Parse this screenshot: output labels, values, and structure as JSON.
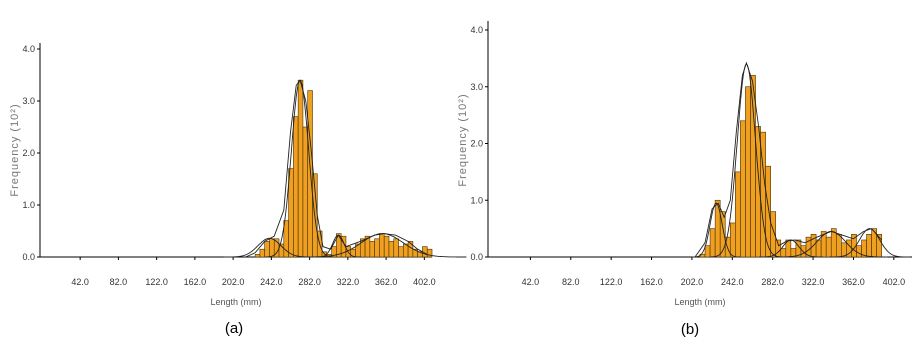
{
  "chart_data": [
    {
      "type": "bar",
      "caption": "(a)",
      "xlabel": "Length (mm)",
      "ylabel": "Frequency (10²)",
      "xlim": [
        0,
        520
      ],
      "ylim": [
        0,
        4.2
      ],
      "bin_width": 5,
      "x_ticks": [
        "42.0",
        "82.0",
        "122.0",
        "162.0",
        "202.0",
        "242.0",
        "282.0",
        "322.0",
        "362.0",
        "402.0"
      ],
      "x_tick_values": [
        42,
        82,
        122,
        162,
        202,
        242,
        282,
        322,
        362,
        402
      ],
      "y_ticks": [
        "0.0",
        "1.0",
        "2.0",
        "3.0",
        "4.0"
      ],
      "y_tick_values": [
        0,
        1,
        2,
        3,
        4
      ],
      "bars": [
        {
          "x": 225,
          "y": 0.05
        },
        {
          "x": 230,
          "y": 0.15
        },
        {
          "x": 235,
          "y": 0.3
        },
        {
          "x": 240,
          "y": 0.35
        },
        {
          "x": 245,
          "y": 0.35
        },
        {
          "x": 250,
          "y": 0.25
        },
        {
          "x": 255,
          "y": 0.7
        },
        {
          "x": 260,
          "y": 1.7
        },
        {
          "x": 265,
          "y": 2.7
        },
        {
          "x": 270,
          "y": 3.4
        },
        {
          "x": 275,
          "y": 2.5
        },
        {
          "x": 280,
          "y": 3.2
        },
        {
          "x": 285,
          "y": 1.6
        },
        {
          "x": 290,
          "y": 0.5
        },
        {
          "x": 295,
          "y": 0.1
        },
        {
          "x": 300,
          "y": 0.05
        },
        {
          "x": 305,
          "y": 0.2
        },
        {
          "x": 310,
          "y": 0.45
        },
        {
          "x": 315,
          "y": 0.4
        },
        {
          "x": 320,
          "y": 0.2
        },
        {
          "x": 325,
          "y": 0.15
        },
        {
          "x": 330,
          "y": 0.25
        },
        {
          "x": 335,
          "y": 0.35
        },
        {
          "x": 340,
          "y": 0.4
        },
        {
          "x": 345,
          "y": 0.3
        },
        {
          "x": 350,
          "y": 0.35
        },
        {
          "x": 355,
          "y": 0.45
        },
        {
          "x": 360,
          "y": 0.4
        },
        {
          "x": 365,
          "y": 0.3
        },
        {
          "x": 370,
          "y": 0.35
        },
        {
          "x": 375,
          "y": 0.2
        },
        {
          "x": 380,
          "y": 0.25
        },
        {
          "x": 385,
          "y": 0.3
        },
        {
          "x": 390,
          "y": 0.15
        },
        {
          "x": 395,
          "y": 0.1
        },
        {
          "x": 400,
          "y": 0.2
        },
        {
          "x": 405,
          "y": 0.15
        }
      ],
      "curves": [
        {
          "mu": 240,
          "sigma": 12,
          "amp": 0.36
        },
        {
          "mu": 272,
          "sigma": 9,
          "amp": 3.4
        },
        {
          "mu": 312,
          "sigma": 6,
          "amp": 0.42
        },
        {
          "mu": 358,
          "sigma": 22,
          "amp": 0.45
        }
      ],
      "envelope": [
        [
          215,
          0.0
        ],
        [
          225,
          0.08
        ],
        [
          235,
          0.3
        ],
        [
          245,
          0.4
        ],
        [
          255,
          0.9
        ],
        [
          262,
          2.4
        ],
        [
          268,
          3.3
        ],
        [
          272,
          3.4
        ],
        [
          278,
          3.0
        ],
        [
          284,
          2.0
        ],
        [
          290,
          0.8
        ],
        [
          296,
          0.2
        ],
        [
          304,
          0.15
        ],
        [
          312,
          0.42
        ],
        [
          320,
          0.2
        ],
        [
          335,
          0.3
        ],
        [
          350,
          0.42
        ],
        [
          360,
          0.45
        ],
        [
          372,
          0.42
        ],
        [
          385,
          0.3
        ],
        [
          395,
          0.15
        ],
        [
          405,
          0.05
        ]
      ]
    },
    {
      "type": "bar",
      "caption": "(b)",
      "xlabel": "Length (mm)",
      "ylabel": "Frequency (10²)",
      "xlim": [
        0,
        520
      ],
      "ylim": [
        0,
        4.2
      ],
      "bin_width": 5,
      "x_ticks": [
        "42.0",
        "82.0",
        "122.0",
        "162.0",
        "202.0",
        "242.0",
        "282.0",
        "322.0",
        "362.0",
        "402.0"
      ],
      "x_tick_values": [
        42,
        82,
        122,
        162,
        202,
        242,
        282,
        322,
        362,
        402
      ],
      "y_ticks": [
        "0.0",
        "1.0",
        "2.0",
        "3.0",
        "4.0"
      ],
      "y_tick_values": [
        0,
        1,
        2,
        3,
        4
      ],
      "bars": [
        {
          "x": 210,
          "y": 0.05
        },
        {
          "x": 215,
          "y": 0.2
        },
        {
          "x": 220,
          "y": 0.5
        },
        {
          "x": 225,
          "y": 1.0
        },
        {
          "x": 230,
          "y": 0.8
        },
        {
          "x": 235,
          "y": 0.35
        },
        {
          "x": 240,
          "y": 0.6
        },
        {
          "x": 245,
          "y": 1.5
        },
        {
          "x": 250,
          "y": 2.4
        },
        {
          "x": 255,
          "y": 3.0
        },
        {
          "x": 260,
          "y": 3.2
        },
        {
          "x": 265,
          "y": 2.3
        },
        {
          "x": 270,
          "y": 2.2
        },
        {
          "x": 275,
          "y": 1.6
        },
        {
          "x": 280,
          "y": 0.8
        },
        {
          "x": 285,
          "y": 0.3
        },
        {
          "x": 290,
          "y": 0.15
        },
        {
          "x": 295,
          "y": 0.3
        },
        {
          "x": 300,
          "y": 0.15
        },
        {
          "x": 305,
          "y": 0.3
        },
        {
          "x": 310,
          "y": 0.2
        },
        {
          "x": 315,
          "y": 0.35
        },
        {
          "x": 320,
          "y": 0.4
        },
        {
          "x": 325,
          "y": 0.3
        },
        {
          "x": 330,
          "y": 0.45
        },
        {
          "x": 335,
          "y": 0.35
        },
        {
          "x": 340,
          "y": 0.5
        },
        {
          "x": 345,
          "y": 0.4
        },
        {
          "x": 350,
          "y": 0.25
        },
        {
          "x": 355,
          "y": 0.3
        },
        {
          "x": 360,
          "y": 0.4
        },
        {
          "x": 365,
          "y": 0.2
        },
        {
          "x": 370,
          "y": 0.3
        },
        {
          "x": 375,
          "y": 0.4
        },
        {
          "x": 380,
          "y": 0.5
        },
        {
          "x": 385,
          "y": 0.4
        }
      ],
      "curves": [
        {
          "mu": 226,
          "sigma": 6,
          "amp": 0.95
        },
        {
          "mu": 256,
          "sigma": 9,
          "amp": 3.4
        },
        {
          "mu": 300,
          "sigma": 8,
          "amp": 0.3
        },
        {
          "mu": 340,
          "sigma": 14,
          "amp": 0.45
        },
        {
          "mu": 378,
          "sigma": 10,
          "amp": 0.5
        }
      ],
      "envelope": [
        [
          205,
          0.0
        ],
        [
          215,
          0.25
        ],
        [
          222,
          0.85
        ],
        [
          228,
          0.95
        ],
        [
          234,
          0.7
        ],
        [
          240,
          1.0
        ],
        [
          246,
          2.2
        ],
        [
          252,
          3.2
        ],
        [
          256,
          3.42
        ],
        [
          262,
          3.1
        ],
        [
          268,
          2.3
        ],
        [
          274,
          1.3
        ],
        [
          280,
          0.6
        ],
        [
          288,
          0.2
        ],
        [
          296,
          0.28
        ],
        [
          304,
          0.3
        ],
        [
          314,
          0.25
        ],
        [
          326,
          0.35
        ],
        [
          340,
          0.45
        ],
        [
          352,
          0.38
        ],
        [
          362,
          0.32
        ],
        [
          372,
          0.45
        ],
        [
          380,
          0.5
        ],
        [
          390,
          0.3
        ]
      ]
    }
  ]
}
